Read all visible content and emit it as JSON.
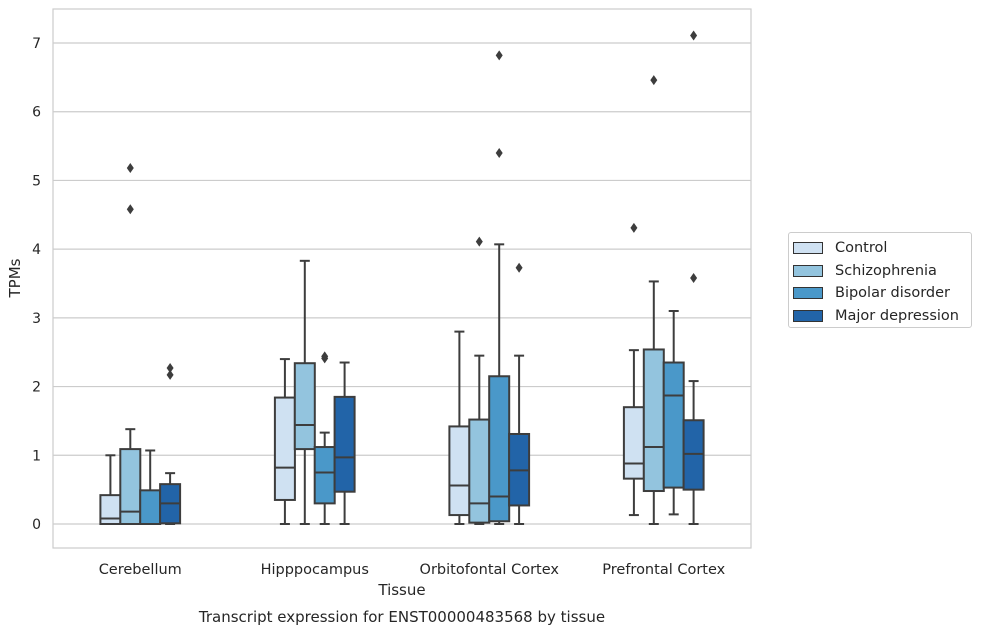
{
  "chart_data": {
    "type": "boxplot",
    "title": "Transcript expression for ENST00000483568 by tissue",
    "xlabel": "Tissue",
    "ylabel": "TPMs",
    "ylim": [
      -0.35,
      7.5
    ],
    "yticks": [
      0,
      1,
      2,
      3,
      4,
      5,
      6,
      7
    ],
    "grid": "horizontal",
    "legend_position": "right",
    "categories": [
      "Cerebellum",
      "Hipppocampus",
      "Orbitofontal Cortex",
      "Prefrontal Cortex"
    ],
    "series": [
      {
        "name": "Control",
        "color": "#cfe1f2",
        "boxes": [
          {
            "whislo": 0,
            "q1": 0.0,
            "med": 0.08,
            "q3": 0.42,
            "whishi": 1.0,
            "fliers": []
          },
          {
            "whislo": 0,
            "q1": 0.35,
            "med": 0.82,
            "q3": 1.84,
            "whishi": 2.4,
            "fliers": []
          },
          {
            "whislo": 0,
            "q1": 0.13,
            "med": 0.56,
            "q3": 1.42,
            "whishi": 2.8,
            "fliers": []
          },
          {
            "whislo": 0.13,
            "q1": 0.66,
            "med": 0.88,
            "q3": 1.7,
            "whishi": 2.53,
            "fliers": [
              4.31
            ]
          }
        ]
      },
      {
        "name": "Schizophrenia",
        "color": "#93c4de",
        "boxes": [
          {
            "whislo": 0,
            "q1": 0.0,
            "med": 0.18,
            "q3": 1.09,
            "whishi": 1.38,
            "fliers": [
              4.58,
              5.18
            ]
          },
          {
            "whislo": 0,
            "q1": 1.09,
            "med": 1.44,
            "q3": 2.34,
            "whishi": 3.83,
            "fliers": []
          },
          {
            "whislo": 0,
            "q1": 0.02,
            "med": 0.3,
            "q3": 1.52,
            "whishi": 2.45,
            "fliers": [
              4.11
            ]
          },
          {
            "whislo": 0,
            "q1": 0.48,
            "med": 1.12,
            "q3": 2.54,
            "whishi": 3.53,
            "fliers": [
              6.46
            ]
          }
        ]
      },
      {
        "name": "Bipolar disorder",
        "color": "#4a98c9",
        "boxes": [
          {
            "whislo": 0,
            "q1": 0.0,
            "med": 0.0,
            "q3": 0.49,
            "whishi": 1.07,
            "fliers": []
          },
          {
            "whislo": 0,
            "q1": 0.3,
            "med": 0.75,
            "q3": 1.12,
            "whishi": 1.33,
            "fliers": [
              2.41,
              2.44
            ]
          },
          {
            "whislo": 0,
            "q1": 0.04,
            "med": 0.4,
            "q3": 2.15,
            "whishi": 4.07,
            "fliers": [
              5.4,
              6.82
            ]
          },
          {
            "whislo": 0.14,
            "q1": 0.53,
            "med": 1.87,
            "q3": 2.35,
            "whishi": 3.1,
            "fliers": []
          }
        ]
      },
      {
        "name": "Major depression",
        "color": "#2264a8",
        "boxes": [
          {
            "whislo": 0,
            "q1": 0.01,
            "med": 0.3,
            "q3": 0.58,
            "whishi": 0.74,
            "fliers": [
              2.17,
              2.27
            ]
          },
          {
            "whislo": 0,
            "q1": 0.47,
            "med": 0.97,
            "q3": 1.85,
            "whishi": 2.35,
            "fliers": []
          },
          {
            "whislo": 0,
            "q1": 0.27,
            "med": 0.78,
            "q3": 1.31,
            "whishi": 2.45,
            "fliers": [
              3.73
            ]
          },
          {
            "whislo": 0,
            "q1": 0.5,
            "med": 1.02,
            "q3": 1.51,
            "whishi": 2.08,
            "fliers": [
              3.58,
              7.11
            ]
          }
        ]
      }
    ]
  }
}
